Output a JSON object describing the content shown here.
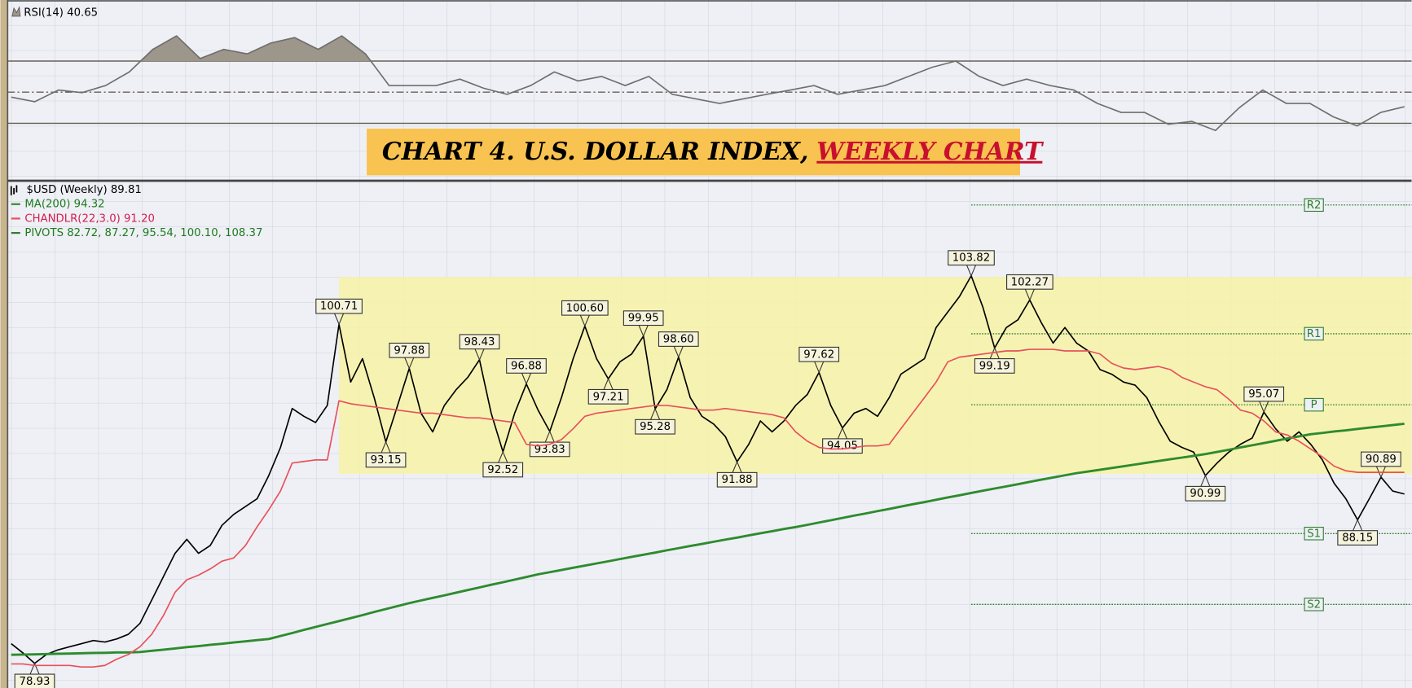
{
  "chart_data": [
    {
      "type": "line",
      "categories": [
        null,
        null,
        null,
        null,
        null,
        null,
        null,
        null,
        null,
        null,
        null,
        null,
        null,
        null,
        null,
        null,
        null,
        null,
        null,
        null,
        null,
        null,
        null,
        null,
        null,
        null,
        null,
        null,
        null,
        null,
        null,
        null,
        null,
        null,
        null,
        null,
        null,
        null,
        null,
        null,
        null,
        null,
        null,
        null,
        null,
        null,
        null,
        null,
        null,
        null,
        null,
        null,
        null,
        null,
        null,
        null,
        null,
        null,
        null,
        null
      ],
      "series": [
        {
          "name": "RSI(14) 40.65",
          "color": "#6e6e6e",
          "fill": "#9d968a",
          "values": [
            46.8,
            43.9,
            51.4,
            49.7,
            54.3,
            63,
            77.5,
            86.2,
            71.6,
            77.5,
            74.6,
            81.6,
            85.1,
            77.5,
            86.2,
            74.6,
            54.3,
            54.3,
            54.3,
            58.4,
            52.6,
            48.6,
            54.3,
            63,
            57.2,
            60.1,
            54.3,
            60.1,
            48.6,
            45.7,
            42.8,
            45.7,
            48.6,
            51.4,
            54.3,
            48.6,
            51.4,
            54.3,
            60.1,
            66,
            70,
            60.1,
            54.3,
            58.4,
            54.3,
            51.4,
            42.8,
            37,
            37,
            29.4,
            31.2,
            25.4,
            39.9,
            51.4,
            42.8,
            42.8,
            34.1,
            28.3,
            37,
            40.65
          ]
        }
      ],
      "ylim": [
        0,
        100
      ],
      "levels": [
        30,
        50,
        70
      ],
      "shade_above": 70
    },
    {
      "type": "line",
      "title": "CHART 4. U.S. DOLLAR INDEX,",
      "title_emphasis": "WEEKLY CHART",
      "categories": [
        null,
        null,
        null,
        null,
        null,
        null,
        null,
        null,
        null,
        null,
        null,
        null,
        null,
        null,
        null,
        null,
        null,
        null,
        null,
        null,
        null,
        null,
        null,
        null,
        null,
        null,
        null,
        null,
        null,
        null,
        null,
        null,
        null,
        null,
        null,
        null,
        null,
        null,
        null,
        null,
        null,
        null,
        null,
        null,
        null,
        null,
        null,
        null,
        null,
        null,
        null,
        null,
        null,
        null,
        null,
        null,
        null,
        null,
        null,
        null,
        null,
        null,
        null,
        null,
        null,
        null,
        null,
        null,
        null,
        null,
        null,
        null,
        null,
        null,
        null,
        null,
        null,
        null,
        null,
        null,
        null,
        null,
        null,
        null,
        null,
        null,
        null,
        null,
        null,
        null,
        null,
        null,
        null,
        null,
        null,
        null,
        null,
        null,
        null,
        null,
        null,
        null,
        null,
        null,
        null,
        null,
        null,
        null,
        null,
        null,
        null,
        null,
        null,
        null,
        null,
        null,
        null,
        null,
        null,
        null
      ],
      "series": [
        {
          "name": "$USD (Weekly) 89.81",
          "color": "#000000",
          "values": [
            80.2,
            79.6,
            78.93,
            79.5,
            79.8,
            80.0,
            80.2,
            80.4,
            80.3,
            80.5,
            80.8,
            81.5,
            83.0,
            84.5,
            86.0,
            86.9,
            86.0,
            86.5,
            87.8,
            88.5,
            89.0,
            89.5,
            91.0,
            92.8,
            95.3,
            94.8,
            94.4,
            95.5,
            100.71,
            97.0,
            98.5,
            96.0,
            93.15,
            95.5,
            97.88,
            95.0,
            93.8,
            95.5,
            96.5,
            97.3,
            98.43,
            95.0,
            92.52,
            95.0,
            96.88,
            95.2,
            93.83,
            96.0,
            98.5,
            100.6,
            98.5,
            97.21,
            98.3,
            98.8,
            99.95,
            95.28,
            96.5,
            98.6,
            96.0,
            94.8,
            94.3,
            93.5,
            91.88,
            93.0,
            94.5,
            93.8,
            94.5,
            95.5,
            96.2,
            97.62,
            95.5,
            94.05,
            95.0,
            95.3,
            94.8,
            96.0,
            97.5,
            98.0,
            98.5,
            100.5,
            101.5,
            102.5,
            103.82,
            101.8,
            99.19,
            100.5,
            101.0,
            102.27,
            100.8,
            99.5,
            100.5,
            99.5,
            99.0,
            97.8,
            97.5,
            97.0,
            96.8,
            96.0,
            94.5,
            93.2,
            92.8,
            92.5,
            90.99,
            91.8,
            92.5,
            93.0,
            93.4,
            95.07,
            94.0,
            93.2,
            93.8,
            93.0,
            92.0,
            90.5,
            89.5,
            88.15,
            89.5,
            90.89,
            90.0,
            89.81
          ],
          "value_labels": [
            null,
            null,
            "78.93",
            null,
            null,
            null,
            null,
            null,
            null,
            null,
            null,
            null,
            null,
            null,
            null,
            null,
            null,
            null,
            null,
            null,
            null,
            null,
            null,
            null,
            null,
            null,
            null,
            null,
            "100.71",
            null,
            null,
            null,
            "93.15",
            null,
            "97.88",
            null,
            null,
            null,
            null,
            null,
            "98.43",
            null,
            "92.52",
            null,
            "96.88",
            null,
            "93.83",
            null,
            null,
            "100.60",
            null,
            "97.21",
            null,
            null,
            "99.95",
            "95.28",
            null,
            "98.60",
            null,
            null,
            null,
            null,
            "91.88",
            null,
            null,
            null,
            null,
            null,
            null,
            "97.62",
            null,
            "94.05",
            null,
            null,
            null,
            null,
            null,
            null,
            null,
            null,
            null,
            null,
            "103.82",
            null,
            "99.19",
            null,
            null,
            "102.27",
            null,
            null,
            null,
            null,
            null,
            null,
            null,
            null,
            null,
            null,
            null,
            null,
            null,
            null,
            "90.99",
            null,
            null,
            null,
            null,
            "95.07",
            null,
            null,
            null,
            null,
            null,
            null,
            null,
            "88.15",
            null,
            "90.89",
            null,
            null
          ]
        },
        {
          "name": "MA(200) 94.32",
          "color": "#2e8b2e",
          "values": [
            79.48,
            79.5,
            79.51,
            79.53,
            79.55,
            79.56,
            79.58,
            79.6,
            79.61,
            79.63,
            79.64,
            79.66,
            79.74,
            79.81,
            79.89,
            79.97,
            80.04,
            80.12,
            80.19,
            80.27,
            80.35,
            80.42,
            80.5,
            80.69,
            80.88,
            81.08,
            81.27,
            81.46,
            81.65,
            81.84,
            82.03,
            82.23,
            82.42,
            82.61,
            82.8,
            82.97,
            83.14,
            83.3,
            83.47,
            83.64,
            83.81,
            83.98,
            84.14,
            84.31,
            84.48,
            84.65,
            84.79,
            84.93,
            85.07,
            85.21,
            85.35,
            85.49,
            85.63,
            85.77,
            85.91,
            86.05,
            86.19,
            86.33,
            86.47,
            86.6,
            86.74,
            86.88,
            87.01,
            87.15,
            87.29,
            87.42,
            87.56,
            87.69,
            87.83,
            87.98,
            88.12,
            88.27,
            88.42,
            88.56,
            88.71,
            88.85,
            89.0,
            89.15,
            89.29,
            89.44,
            89.59,
            89.73,
            89.88,
            90.02,
            90.16,
            90.3,
            90.44,
            90.59,
            90.73,
            90.87,
            91.01,
            91.15,
            91.26,
            91.37,
            91.48,
            91.59,
            91.7,
            91.82,
            91.93,
            92.04,
            92.15,
            92.26,
            92.37,
            92.51,
            92.65,
            92.8,
            92.94,
            93.08,
            93.22,
            93.37,
            93.51,
            93.65,
            93.73,
            93.82,
            93.9,
            93.99,
            94.07,
            94.15,
            94.24,
            94.32
          ]
        },
        {
          "name": "CHANDLR(22,3.0) 91.20",
          "color": "#e8505b",
          "values": [
            78.9,
            78.9,
            78.8,
            78.8,
            78.8,
            78.8,
            78.7,
            78.7,
            78.8,
            79.2,
            79.5,
            80.0,
            80.8,
            82.0,
            83.5,
            84.3,
            84.6,
            85.0,
            85.5,
            85.7,
            86.5,
            87.7,
            88.8,
            90.0,
            91.8,
            91.9,
            92.0,
            92.0,
            95.8,
            95.6,
            95.5,
            95.4,
            95.3,
            95.2,
            95.1,
            95.0,
            95.0,
            94.9,
            94.8,
            94.7,
            94.7,
            94.6,
            94.5,
            94.4,
            93.0,
            92.9,
            93.0,
            93.3,
            94.0,
            94.8,
            95.0,
            95.1,
            95.2,
            95.3,
            95.4,
            95.5,
            95.5,
            95.4,
            95.3,
            95.2,
            95.2,
            95.3,
            95.2,
            95.1,
            95.0,
            94.9,
            94.7,
            93.8,
            93.2,
            92.8,
            92.7,
            92.7,
            92.8,
            92.9,
            92.9,
            93.0,
            94.0,
            95.0,
            96.0,
            97.0,
            98.3,
            98.6,
            98.7,
            98.8,
            98.9,
            99.0,
            99.0,
            99.1,
            99.1,
            99.1,
            99.0,
            99.0,
            99.0,
            98.8,
            98.2,
            97.9,
            97.8,
            97.9,
            98.0,
            97.8,
            97.3,
            97.0,
            96.7,
            96.5,
            95.9,
            95.2,
            95.0,
            94.5,
            93.8,
            93.6,
            93.2,
            92.7,
            92.2,
            91.6,
            91.3,
            91.2,
            91.2,
            91.2,
            91.2,
            91.2
          ]
        }
      ],
      "ylim": [
        77.35,
        109.81
      ],
      "highlight": {
        "ylim": [
          91.1,
          103.75
        ],
        "start": 28,
        "color": "#f7f3a6"
      },
      "pivots": {
        "name": "PIVOTS 82.72, 87.27, 95.54, 100.10, 108.37",
        "color": "#2f7d2f",
        "start": 82,
        "labels": [
          "S2",
          "S1",
          "P",
          "R1",
          "R2"
        ],
        "values": [
          82.72,
          87.27,
          95.54,
          100.1,
          108.37
        ]
      }
    }
  ]
}
